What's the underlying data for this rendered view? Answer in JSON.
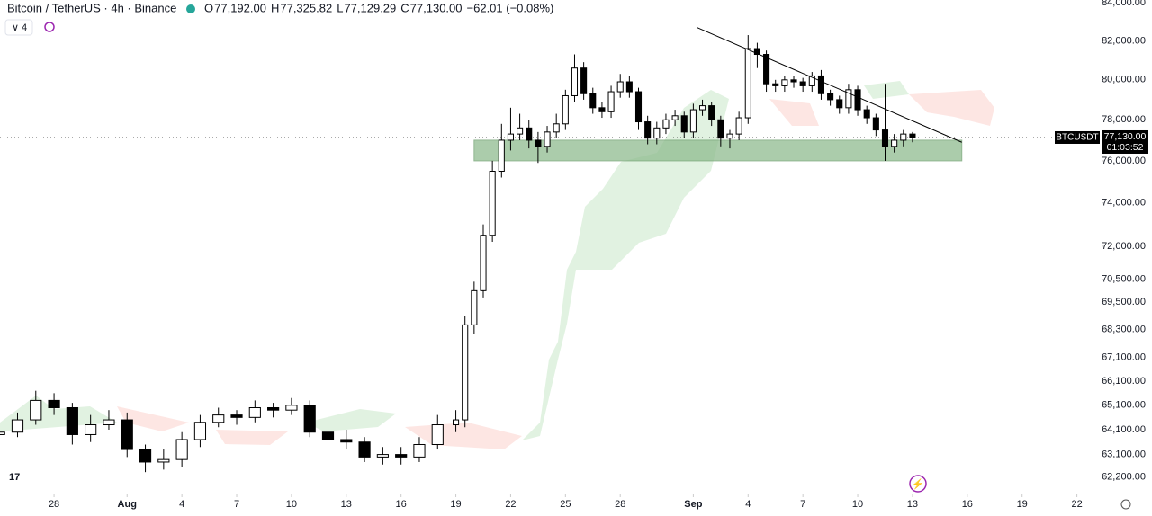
{
  "chart_data": {
    "type": "candlestick",
    "title": "Bitcoin / TetherUS · 4h · Binance",
    "ohlc_header": [
      {
        "label": "O",
        "value": "77,192.00"
      },
      {
        "label": "H",
        "value": "77,325.82"
      },
      {
        "label": "L",
        "value": "77,129.29"
      },
      {
        "label": "C",
        "value": "77,130.00"
      }
    ],
    "change": "−62.01 (−0.08%)",
    "indicator_count": "4",
    "symbol": "BTCUSDT",
    "last_price": 77130,
    "last_price_label": "77,130.00",
    "countdown": "01:03:52",
    "log_scale": true,
    "up_color": "#ffffff",
    "down_color": "#000000",
    "border_color": "#000000",
    "x": [
      -3,
      -2,
      -1,
      0,
      1,
      2,
      3,
      4,
      5,
      6,
      7,
      8,
      9,
      10,
      11,
      12,
      13,
      14,
      15,
      16,
      17,
      18,
      19,
      20,
      21,
      22,
      22.5,
      23,
      23.5,
      24,
      24.5,
      25,
      25.5,
      26,
      26.5,
      27,
      27.5,
      28,
      28.5,
      29,
      29.5,
      30,
      30.5,
      31,
      31.5,
      32,
      32.5,
      33,
      33.5,
      34,
      34.5,
      35,
      35.5,
      36,
      36.5,
      37,
      37.5,
      38,
      38.5,
      39,
      39.5,
      40,
      40.5,
      41,
      41.5,
      42,
      42.5,
      43,
      43.5,
      44,
      44.5,
      45,
      45.5,
      46,
      46.5,
      47
    ],
    "open": [
      63900,
      64000,
      64500,
      65300,
      65000,
      63900,
      64300,
      64500,
      63300,
      62800,
      62900,
      63700,
      64400,
      64700,
      64600,
      65000,
      64900,
      65100,
      64000,
      63700,
      63600,
      63000,
      63100,
      63000,
      63500,
      64300,
      64500,
      68500,
      70000,
      72500,
      75500,
      77000,
      77300,
      77600,
      77000,
      76700,
      77400,
      77800,
      79200,
      80600,
      79300,
      78600,
      78400,
      79400,
      79900,
      79400,
      77900,
      77100,
      77600,
      78000,
      78200,
      77400,
      78500,
      78700,
      78000,
      77100,
      77300,
      78100,
      81600,
      81300,
      79800,
      79700,
      80000,
      79900,
      79700,
      80200,
      79300,
      79000,
      78600,
      79500,
      78500,
      78100,
      77500,
      76700,
      77000,
      77300
    ],
    "high": [
      64300,
      64800,
      65700,
      65600,
      65200,
      64700,
      64900,
      64800,
      63500,
      63300,
      64000,
      64700,
      65000,
      64900,
      65300,
      65200,
      65400,
      65300,
      64300,
      64100,
      63800,
      63400,
      63400,
      63800,
      64700,
      64900,
      68900,
      70400,
      73000,
      76000,
      77800,
      78600,
      78300,
      78000,
      77400,
      77700,
      78300,
      79500,
      81300,
      80900,
      79600,
      78900,
      79700,
      80300,
      80200,
      79600,
      78200,
      77900,
      78300,
      78500,
      78400,
      78800,
      79000,
      78900,
      78200,
      77500,
      78400,
      82300,
      81900,
      81500,
      80000,
      80200,
      80200,
      80100,
      80400,
      80500,
      79500,
      79200,
      79800,
      79700,
      78700,
      78300,
      79800,
      77300,
      77500,
      77400
    ],
    "low": [
      63700,
      63800,
      64300,
      64700,
      63500,
      63600,
      64100,
      63000,
      62400,
      62500,
      62600,
      63400,
      64200,
      64300,
      64400,
      64600,
      64700,
      63800,
      63400,
      63300,
      62800,
      62700,
      62700,
      62800,
      63300,
      64000,
      64200,
      68100,
      69700,
      72200,
      75200,
      76500,
      77000,
      76600,
      75900,
      76400,
      77100,
      77500,
      78900,
      79000,
      78300,
      78100,
      78100,
      79100,
      79100,
      77500,
      76800,
      76800,
      77300,
      77700,
      77100,
      77100,
      78200,
      77700,
      76700,
      76600,
      77000,
      77800,
      80600,
      79400,
      79400,
      79400,
      79600,
      79400,
      79400,
      79000,
      78700,
      78300,
      78300,
      78200,
      77800,
      77200,
      76000,
      76400,
      76700,
      76900
    ],
    "close": [
      64000,
      64500,
      65300,
      65000,
      63900,
      64300,
      64500,
      63300,
      62800,
      62900,
      63700,
      64400,
      64700,
      64600,
      65000,
      64900,
      65100,
      64000,
      63700,
      63600,
      63000,
      63100,
      63000,
      63500,
      64300,
      64500,
      68500,
      70000,
      72500,
      75500,
      77000,
      77300,
      77600,
      77000,
      76700,
      77400,
      77800,
      79200,
      80600,
      79300,
      78600,
      78400,
      79400,
      79900,
      79400,
      77900,
      77100,
      77600,
      78000,
      78200,
      77400,
      78500,
      78700,
      78000,
      77100,
      77300,
      78100,
      81600,
      81300,
      79800,
      79700,
      80000,
      79900,
      79700,
      80200,
      79300,
      79000,
      78600,
      79500,
      78500,
      78100,
      77500,
      76700,
      77000,
      77300,
      77130
    ],
    "zone": {
      "x": [
        23,
        49.7
      ],
      "y": [
        76000,
        77000
      ],
      "color": "#8fbc8f"
    },
    "trendline": {
      "x": [
        35.2,
        49.7
      ],
      "y": [
        82700,
        76900
      ]
    },
    "xlim": [
      -2.96,
      57.4
    ],
    "xticks": [
      {
        "value": 0,
        "label": "28"
      },
      {
        "value": 4,
        "label": "Aug"
      },
      {
        "value": 7,
        "label": "4"
      },
      {
        "value": 10,
        "label": "7"
      },
      {
        "value": 13,
        "label": "10"
      },
      {
        "value": 16,
        "label": "13"
      },
      {
        "value": 19,
        "label": "16"
      },
      {
        "value": 22,
        "label": "19"
      },
      {
        "value": 25,
        "label": "22"
      },
      {
        "value": 28,
        "label": "25"
      },
      {
        "value": 31,
        "label": "28"
      },
      {
        "value": 35,
        "label": "Sep"
      },
      {
        "value": 38,
        "label": "4"
      },
      {
        "value": 41,
        "label": "7"
      },
      {
        "value": 44,
        "label": "10"
      },
      {
        "value": 47,
        "label": "13"
      },
      {
        "value": 50,
        "label": "16"
      },
      {
        "value": 53,
        "label": "19"
      },
      {
        "value": 56,
        "label": "22"
      }
    ],
    "ylim": [
      61700,
      84150
    ],
    "yticks": [
      {
        "value": 62200,
        "label": "62,200.00"
      },
      {
        "value": 63100,
        "label": "63,100.00"
      },
      {
        "value": 64100,
        "label": "64,100.00"
      },
      {
        "value": 65100,
        "label": "65,100.00"
      },
      {
        "value": 66100,
        "label": "66,100.00"
      },
      {
        "value": 67100,
        "label": "67,100.00"
      },
      {
        "value": 68300,
        "label": "68,300.00"
      },
      {
        "value": 69500,
        "label": "69,500.00"
      },
      {
        "value": 70500,
        "label": "70,500.00"
      },
      {
        "value": 72000,
        "label": "72,000.00"
      },
      {
        "value": 74000,
        "label": "74,000.00"
      },
      {
        "value": 76000,
        "label": "76,000.00"
      },
      {
        "value": 78000,
        "label": "78,000.00"
      },
      {
        "value": 80000,
        "label": "80,000.00"
      },
      {
        "value": 82000,
        "label": "82,000.00"
      },
      {
        "value": 84000,
        "label": "84,000.00"
      }
    ]
  }
}
